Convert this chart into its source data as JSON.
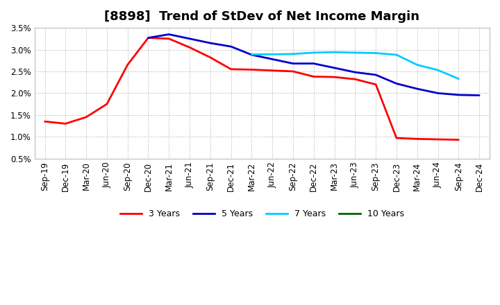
{
  "title": "[8898]  Trend of StDev of Net Income Margin",
  "x_labels": [
    "Sep-19",
    "Dec-19",
    "Mar-20",
    "Jun-20",
    "Sep-20",
    "Dec-20",
    "Mar-21",
    "Jun-21",
    "Sep-21",
    "Dec-21",
    "Mar-22",
    "Jun-22",
    "Sep-22",
    "Dec-22",
    "Mar-23",
    "Jun-23",
    "Sep-23",
    "Dec-23",
    "Mar-24",
    "Jun-24",
    "Sep-24",
    "Dec-24"
  ],
  "ylim": [
    0.005,
    0.035
  ],
  "yticks": [
    0.005,
    0.01,
    0.015,
    0.02,
    0.025,
    0.03,
    0.035
  ],
  "ytick_labels": [
    "0.5%",
    "1.0%",
    "1.5%",
    "2.0%",
    "2.5%",
    "3.0%",
    "3.5%"
  ],
  "y3": [
    0.0135,
    0.013,
    0.0145,
    0.0175,
    0.0265,
    0.0327,
    0.0325,
    0.0305,
    0.0282,
    0.0255,
    0.0254,
    0.0252,
    0.025,
    0.0238,
    0.0237,
    0.0232,
    0.022,
    0.0097,
    0.0095,
    0.0094,
    0.0093,
    null
  ],
  "y5": [
    null,
    null,
    null,
    null,
    null,
    0.0327,
    0.0335,
    0.0325,
    0.0315,
    0.0307,
    0.0288,
    0.0278,
    0.0268,
    0.0268,
    0.0258,
    0.0248,
    0.0242,
    0.0222,
    0.021,
    0.02,
    0.0196,
    0.0195
  ],
  "y7": [
    null,
    null,
    null,
    null,
    null,
    null,
    null,
    null,
    null,
    null,
    0.0289,
    0.0289,
    0.029,
    0.0293,
    0.0294,
    0.0293,
    0.0292,
    0.0288,
    0.0265,
    0.0253,
    0.0233,
    null
  ],
  "y10": [
    null,
    null,
    null,
    null,
    null,
    null,
    null,
    null,
    null,
    null,
    null,
    null,
    null,
    null,
    null,
    null,
    null,
    null,
    null,
    null,
    null,
    null
  ],
  "colors": {
    "3 Years": "#FF0000",
    "5 Years": "#0000CC",
    "7 Years": "#00CCFF",
    "10 Years": "#006600"
  },
  "background_color": "#FFFFFF",
  "grid_color": "#AAAAAA",
  "title_fontsize": 13,
  "tick_fontsize": 8.5
}
